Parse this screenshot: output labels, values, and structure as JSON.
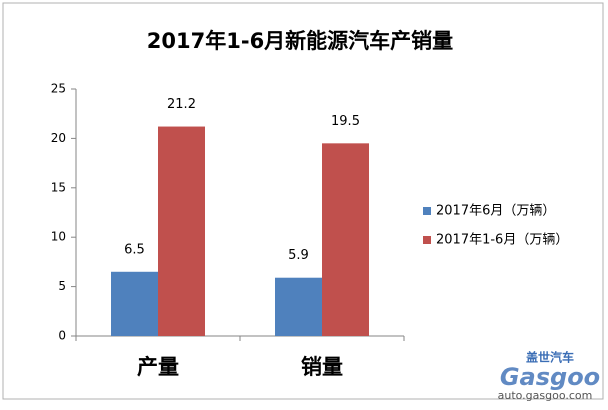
{
  "chart_data": {
    "type": "bar",
    "title": "2017年1-6月新能源汽车产销量",
    "categories": [
      "产量",
      "销量"
    ],
    "series": [
      {
        "name": "2017年6月（万辆）",
        "color": "#4f81bd",
        "values": [
          6.5,
          5.9
        ]
      },
      {
        "name": "2017年1-6月（万辆）",
        "color": "#c0504d",
        "values": [
          21.2,
          19.5
        ]
      }
    ],
    "ylim": [
      0,
      25
    ],
    "yticks": [
      0,
      5,
      10,
      15,
      20,
      25
    ],
    "grid": false,
    "legend": "right"
  },
  "watermark": {
    "brand_cn": "盖世汽车",
    "brand": "Gasgoo",
    "url": "auto.gasgoo.com"
  }
}
